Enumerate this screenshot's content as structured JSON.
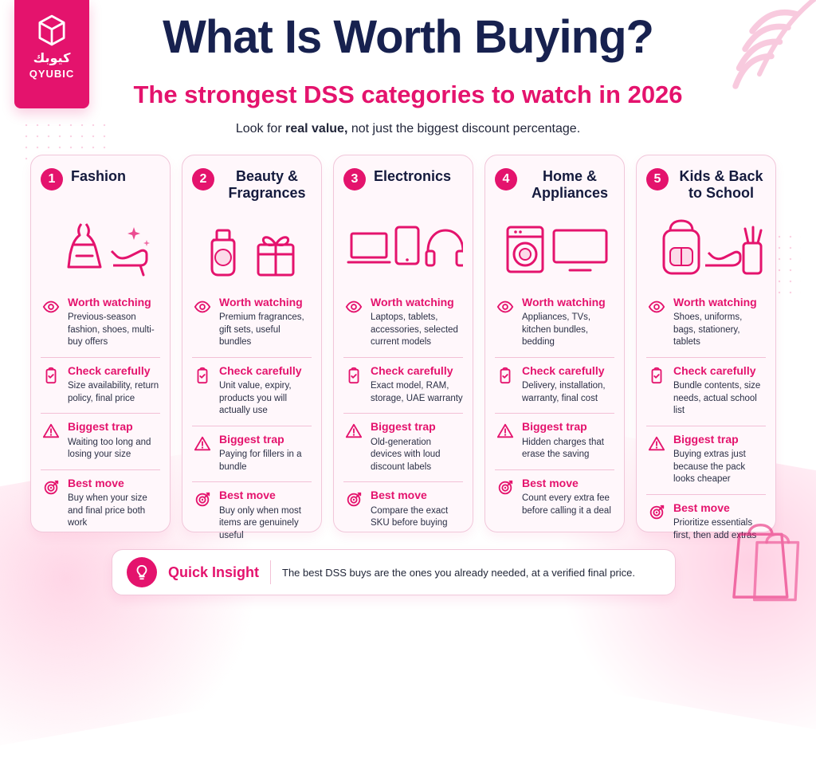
{
  "brand": {
    "arabic": "كيوبك",
    "english": "QYUBIC"
  },
  "header": {
    "title": "What Is Worth Buying?",
    "subtitle": "The strongest DSS categories to watch in 2026",
    "tagline_prefix": "Look for ",
    "tagline_emphasis": "real value,",
    "tagline_suffix": " not just the biggest discount percentage."
  },
  "cards": [
    {
      "number": "1",
      "title": "Fashion",
      "illustration_icon": "dress-and-heels-icon",
      "sections": [
        {
          "label": "Worth watching",
          "icon": "eye-icon",
          "text": "Previous-season fashion, shoes, multi-buy offers"
        },
        {
          "label": "Check carefully",
          "icon": "clipboard-check-icon",
          "text": "Size availability, return policy, final price"
        },
        {
          "label": "Biggest trap",
          "icon": "warning-triangle-icon",
          "text": "Waiting too long and losing your size"
        },
        {
          "label": "Best move",
          "icon": "target-icon",
          "text": "Buy when your size and final price both work"
        }
      ]
    },
    {
      "number": "2",
      "title": "Beauty & Fragrances",
      "illustration_icon": "perfume-and-gift-icon",
      "sections": [
        {
          "label": "Worth watching",
          "icon": "eye-icon",
          "text": "Premium fragrances, gift sets, useful bundles"
        },
        {
          "label": "Check carefully",
          "icon": "clipboard-check-icon",
          "text": "Unit value, expiry, products you will actually use"
        },
        {
          "label": "Biggest trap",
          "icon": "warning-triangle-icon",
          "text": "Paying for fillers in a bundle"
        },
        {
          "label": "Best move",
          "icon": "target-icon",
          "text": "Buy only when most items are genuinely useful"
        }
      ]
    },
    {
      "number": "3",
      "title": "Electronics",
      "illustration_icon": "laptop-tablet-headphones-icon",
      "sections": [
        {
          "label": "Worth watching",
          "icon": "eye-icon",
          "text": "Laptops, tablets, accessories, selected current models"
        },
        {
          "label": "Check carefully",
          "icon": "clipboard-check-icon",
          "text": "Exact model, RAM, storage, UAE warranty"
        },
        {
          "label": "Biggest trap",
          "icon": "warning-triangle-icon",
          "text": "Old-generation devices with loud discount labels"
        },
        {
          "label": "Best move",
          "icon": "target-icon",
          "text": "Compare the exact SKU before buying"
        }
      ]
    },
    {
      "number": "4",
      "title": "Home & Appliances",
      "illustration_icon": "washer-and-tv-icon",
      "sections": [
        {
          "label": "Worth watching",
          "icon": "eye-icon",
          "text": "Appliances, TVs, kitchen bundles, bedding"
        },
        {
          "label": "Check carefully",
          "icon": "clipboard-check-icon",
          "text": "Delivery, installation, warranty, final cost"
        },
        {
          "label": "Biggest trap",
          "icon": "warning-triangle-icon",
          "text": "Hidden charges that erase the saving"
        },
        {
          "label": "Best move",
          "icon": "target-icon",
          "text": "Count every extra fee before calling it a deal"
        }
      ]
    },
    {
      "number": "5",
      "title": "Kids & Back to School",
      "illustration_icon": "backpack-and-supplies-icon",
      "sections": [
        {
          "label": "Worth watching",
          "icon": "eye-icon",
          "text": "Shoes, uniforms, bags, stationery, tablets"
        },
        {
          "label": "Check carefully",
          "icon": "clipboard-check-icon",
          "text": "Bundle contents, size needs, actual school list"
        },
        {
          "label": "Biggest trap",
          "icon": "warning-triangle-icon",
          "text": "Buying extras just because the pack looks cheaper"
        },
        {
          "label": "Best move",
          "icon": "target-icon",
          "text": "Prioritize essentials first, then add extras"
        }
      ]
    }
  ],
  "insight": {
    "icon": "lightbulb-icon",
    "label": "Quick Insight",
    "text": "The best DSS buys are the ones you already needed, at a verified final price."
  },
  "colors": {
    "accent": "#e4136d",
    "navy": "#17214f",
    "card_bg": "#fff7fb",
    "card_border": "#f1c7da"
  }
}
